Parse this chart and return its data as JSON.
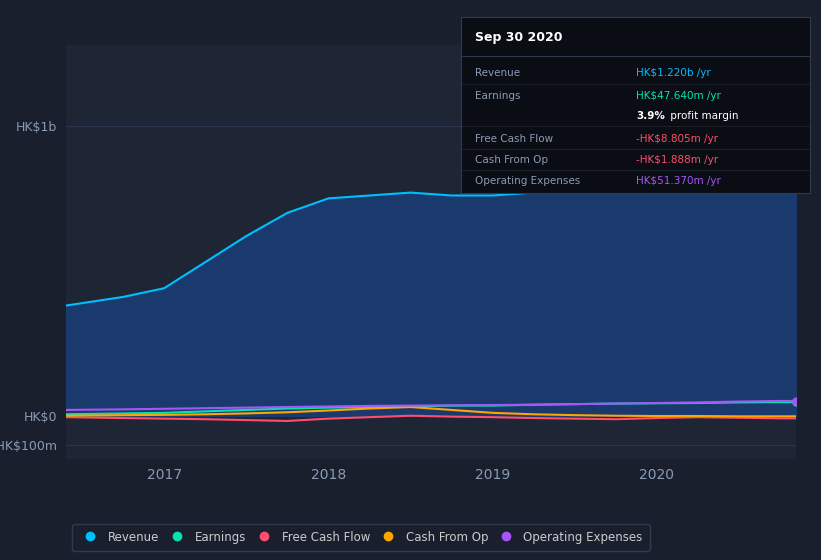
{
  "background_color": "#1a1f2e",
  "plot_bg_color": "#1e2535",
  "y_labels": [
    "HK$1b",
    "HK$0",
    "-HK$100m"
  ],
  "y_values": [
    1000,
    0,
    -100
  ],
  "x_ticks": [
    2017,
    2018,
    2019,
    2020
  ],
  "ylim": [
    -150,
    1280
  ],
  "xlim_start": 2016.4,
  "xlim_end": 2020.85,
  "series": {
    "Revenue": {
      "color": "#00bfff",
      "fill_color": "#1a3a6e",
      "values_x": [
        2016.4,
        2016.75,
        2017.0,
        2017.25,
        2017.5,
        2017.75,
        2018.0,
        2018.25,
        2018.5,
        2018.75,
        2019.0,
        2019.25,
        2019.5,
        2019.75,
        2020.0,
        2020.25,
        2020.5,
        2020.75,
        2020.85
      ],
      "values_y": [
        380,
        410,
        440,
        530,
        620,
        700,
        750,
        760,
        770,
        760,
        760,
        770,
        780,
        810,
        860,
        960,
        1100,
        1220,
        1220
      ]
    },
    "Earnings": {
      "color": "#00e5b0",
      "values_x": [
        2016.4,
        2016.75,
        2017.0,
        2017.25,
        2017.5,
        2017.75,
        2018.0,
        2018.25,
        2018.5,
        2018.75,
        2019.0,
        2019.25,
        2019.5,
        2019.75,
        2020.0,
        2020.25,
        2020.5,
        2020.75,
        2020.85
      ],
      "values_y": [
        5,
        8,
        10,
        15,
        20,
        25,
        28,
        30,
        32,
        35,
        35,
        38,
        40,
        42,
        43,
        44,
        46,
        47,
        47
      ]
    },
    "Free Cash Flow": {
      "color": "#ff4d6d",
      "values_x": [
        2016.4,
        2016.75,
        2017.0,
        2017.25,
        2017.5,
        2017.75,
        2018.0,
        2018.25,
        2018.5,
        2018.75,
        2019.0,
        2019.25,
        2019.5,
        2019.75,
        2020.0,
        2020.25,
        2020.5,
        2020.75,
        2020.85
      ],
      "values_y": [
        -5,
        -8,
        -10,
        -12,
        -15,
        -18,
        -10,
        -5,
        0,
        -3,
        -5,
        -8,
        -10,
        -12,
        -8,
        -5,
        -7,
        -9,
        -9
      ]
    },
    "Cash From Op": {
      "color": "#ffa500",
      "values_x": [
        2016.4,
        2016.75,
        2017.0,
        2017.25,
        2017.5,
        2017.75,
        2018.0,
        2018.25,
        2018.5,
        2018.75,
        2019.0,
        2019.25,
        2019.5,
        2019.75,
        2020.0,
        2020.25,
        2020.5,
        2020.75,
        2020.85
      ],
      "values_y": [
        0,
        2,
        3,
        5,
        8,
        12,
        18,
        25,
        30,
        20,
        10,
        5,
        2,
        0,
        -1,
        -1,
        -2,
        -2,
        -2
      ]
    },
    "Operating Expenses": {
      "color": "#a855f7",
      "values_x": [
        2016.4,
        2016.75,
        2017.0,
        2017.25,
        2017.5,
        2017.75,
        2018.0,
        2018.25,
        2018.5,
        2018.75,
        2019.0,
        2019.25,
        2019.5,
        2019.75,
        2020.0,
        2020.25,
        2020.5,
        2020.75,
        2020.85
      ],
      "values_y": [
        20,
        22,
        24,
        26,
        28,
        30,
        32,
        34,
        35,
        36,
        37,
        38,
        40,
        42,
        44,
        46,
        49,
        51,
        51
      ]
    }
  },
  "tooltip": {
    "date": "Sep 30 2020",
    "rows": [
      {
        "label": "Revenue",
        "value": "HK$1.220b /yr",
        "value_color": "#00bfff"
      },
      {
        "label": "Earnings",
        "value": "HK$47.640m /yr",
        "value_color": "#00e5b0"
      },
      {
        "label": "",
        "value": "3.9% profit margin",
        "value_color": "#ffffff"
      },
      {
        "label": "Free Cash Flow",
        "value": "-HK$8.805m /yr",
        "value_color": "#ff4d6d"
      },
      {
        "label": "Cash From Op",
        "value": "-HK$1.888m /yr",
        "value_color": "#ff4d6d"
      },
      {
        "label": "Operating Expenses",
        "value": "HK$51.370m /yr",
        "value_color": "#a855f7"
      }
    ]
  },
  "legend": [
    {
      "label": "Revenue",
      "color": "#00bfff"
    },
    {
      "label": "Earnings",
      "color": "#00e5b0"
    },
    {
      "label": "Free Cash Flow",
      "color": "#ff4d6d"
    },
    {
      "label": "Cash From Op",
      "color": "#ffa500"
    },
    {
      "label": "Operating Expenses",
      "color": "#a855f7"
    }
  ]
}
